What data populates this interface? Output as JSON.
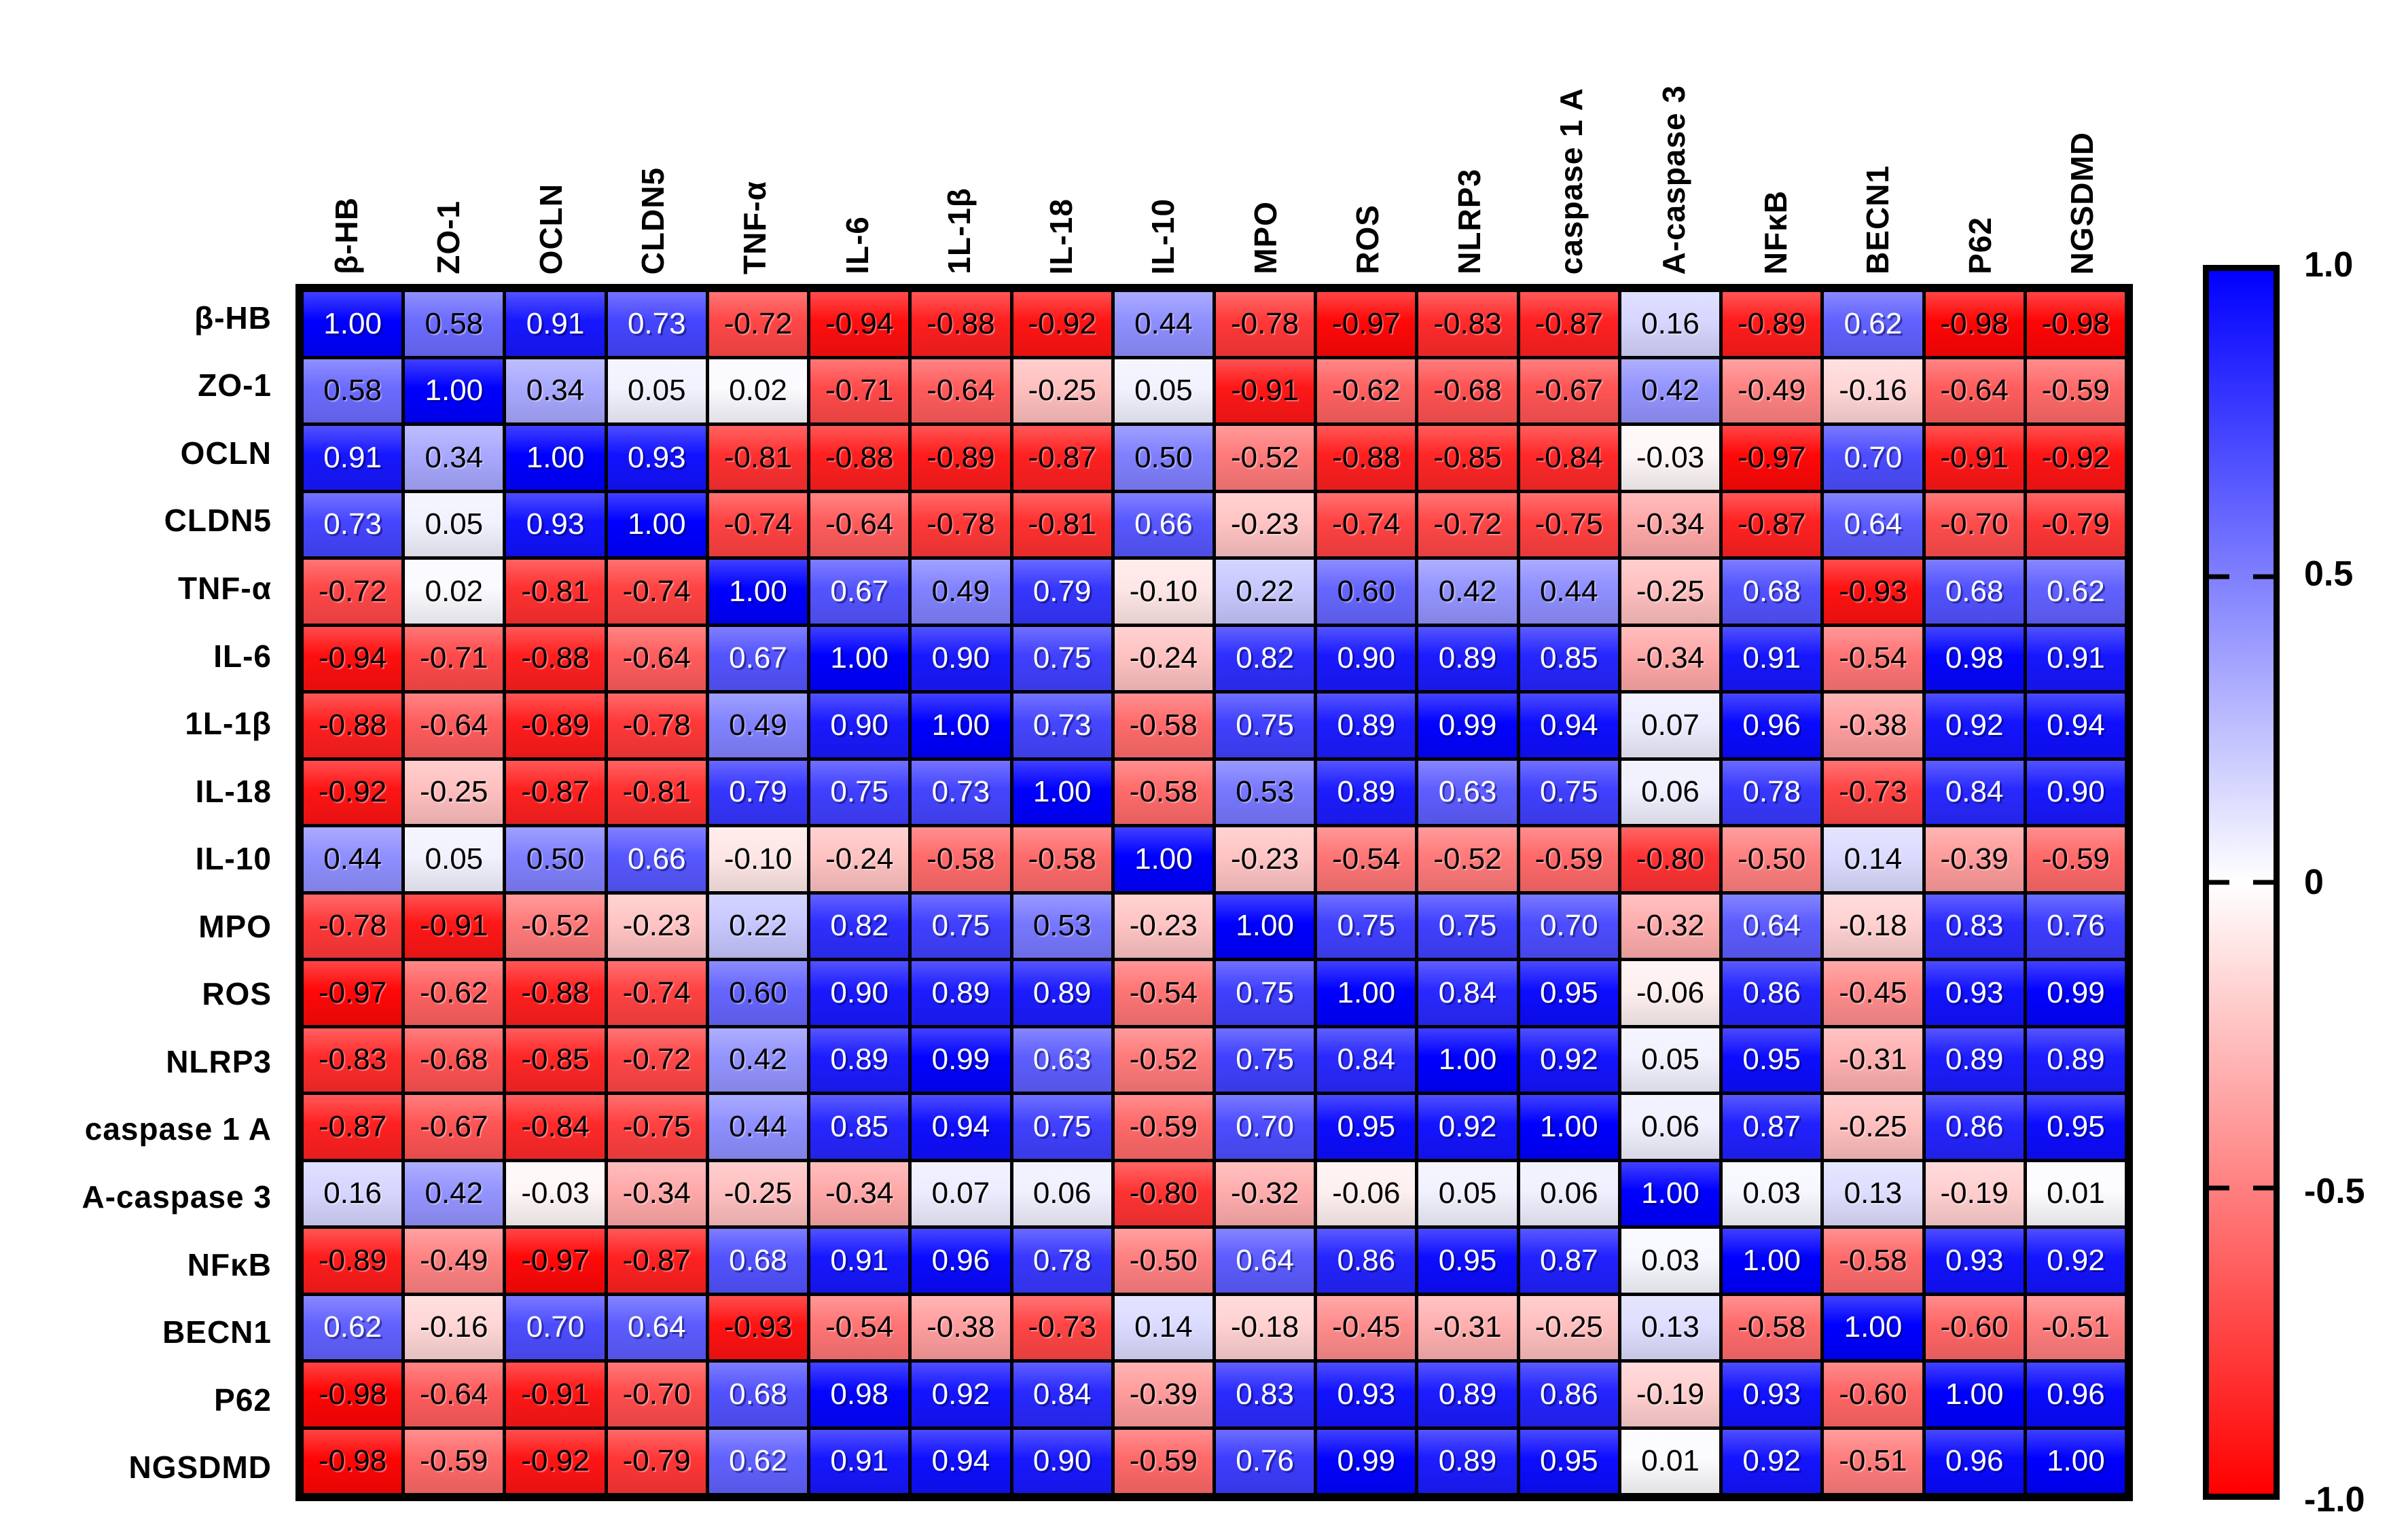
{
  "figure": {
    "description": "Correlation matrix heatmap with blue-white-red diverging colormap",
    "background_color": "#FFFFFF"
  },
  "chart_data": {
    "type": "heatmap",
    "row_labels": [
      "β-HB",
      "ZO-1",
      "OCLN",
      "CLDN5",
      "TNF-α",
      "IL-6",
      "1L-1β",
      "IL-18",
      "IL-10",
      "MPO",
      "ROS",
      "NLRP3",
      "caspase 1 A",
      "A-caspase 3",
      "NFκB",
      "BECN1",
      "P62",
      "NGSDMD"
    ],
    "col_labels": [
      "β-HB",
      "ZO-1",
      "OCLN",
      "CLDN5",
      "TNF-α",
      "IL-6",
      "1L-1β",
      "IL-18",
      "IL-10",
      "MPO",
      "ROS",
      "NLRP3",
      "caspase 1 A",
      "A-caspase 3",
      "NFκB",
      "BECN1",
      "P62",
      "NGSDMD"
    ],
    "values": [
      [
        1.0,
        0.58,
        0.91,
        0.73,
        -0.72,
        -0.94,
        -0.88,
        -0.92,
        0.44,
        -0.78,
        -0.97,
        -0.83,
        -0.87,
        0.16,
        -0.89,
        0.62,
        -0.98,
        -0.98
      ],
      [
        0.58,
        1.0,
        0.34,
        0.05,
        0.02,
        -0.71,
        -0.64,
        -0.25,
        0.05,
        -0.91,
        -0.62,
        -0.68,
        -0.67,
        0.42,
        -0.49,
        -0.16,
        -0.64,
        -0.59
      ],
      [
        0.91,
        0.34,
        1.0,
        0.93,
        -0.81,
        -0.88,
        -0.89,
        -0.87,
        0.5,
        -0.52,
        -0.88,
        -0.85,
        -0.84,
        -0.03,
        -0.97,
        0.7,
        -0.91,
        -0.92
      ],
      [
        0.73,
        0.05,
        0.93,
        1.0,
        -0.74,
        -0.64,
        -0.78,
        -0.81,
        0.66,
        -0.23,
        -0.74,
        -0.72,
        -0.75,
        -0.34,
        -0.87,
        0.64,
        -0.7,
        -0.79
      ],
      [
        -0.72,
        0.02,
        -0.81,
        -0.74,
        1.0,
        0.67,
        0.49,
        0.79,
        -0.1,
        0.22,
        0.6,
        0.42,
        0.44,
        -0.25,
        0.68,
        -0.93,
        0.68,
        0.62
      ],
      [
        -0.94,
        -0.71,
        -0.88,
        -0.64,
        0.67,
        1.0,
        0.9,
        0.75,
        -0.24,
        0.82,
        0.9,
        0.89,
        0.85,
        -0.34,
        0.91,
        -0.54,
        0.98,
        0.91
      ],
      [
        -0.88,
        -0.64,
        -0.89,
        -0.78,
        0.49,
        0.9,
        1.0,
        0.73,
        -0.58,
        0.75,
        0.89,
        0.99,
        0.94,
        0.07,
        0.96,
        -0.38,
        0.92,
        0.94
      ],
      [
        -0.92,
        -0.25,
        -0.87,
        -0.81,
        0.79,
        0.75,
        0.73,
        1.0,
        -0.58,
        0.53,
        0.89,
        0.63,
        0.75,
        0.06,
        0.78,
        -0.73,
        0.84,
        0.9
      ],
      [
        0.44,
        0.05,
        0.5,
        0.66,
        -0.1,
        -0.24,
        -0.58,
        -0.58,
        1.0,
        -0.23,
        -0.54,
        -0.52,
        -0.59,
        -0.8,
        -0.5,
        0.14,
        -0.39,
        -0.59
      ],
      [
        -0.78,
        -0.91,
        -0.52,
        -0.23,
        0.22,
        0.82,
        0.75,
        0.53,
        -0.23,
        1.0,
        0.75,
        0.75,
        0.7,
        -0.32,
        0.64,
        -0.18,
        0.83,
        0.76
      ],
      [
        -0.97,
        -0.62,
        -0.88,
        -0.74,
        0.6,
        0.9,
        0.89,
        0.89,
        -0.54,
        0.75,
        1.0,
        0.84,
        0.95,
        -0.06,
        0.86,
        -0.45,
        0.93,
        0.99
      ],
      [
        -0.83,
        -0.68,
        -0.85,
        -0.72,
        0.42,
        0.89,
        0.99,
        0.63,
        -0.52,
        0.75,
        0.84,
        1.0,
        0.92,
        0.05,
        0.95,
        -0.31,
        0.89,
        0.89
      ],
      [
        -0.87,
        -0.67,
        -0.84,
        -0.75,
        0.44,
        0.85,
        0.94,
        0.75,
        -0.59,
        0.7,
        0.95,
        0.92,
        1.0,
        0.06,
        0.87,
        -0.25,
        0.86,
        0.95
      ],
      [
        0.16,
        0.42,
        -0.03,
        -0.34,
        -0.25,
        -0.34,
        0.07,
        0.06,
        -0.8,
        -0.32,
        -0.06,
        0.05,
        0.06,
        1.0,
        0.03,
        0.13,
        -0.19,
        0.01
      ],
      [
        -0.89,
        -0.49,
        -0.97,
        -0.87,
        0.68,
        0.91,
        0.96,
        0.78,
        -0.5,
        0.64,
        0.86,
        0.95,
        0.87,
        0.03,
        1.0,
        -0.58,
        0.93,
        0.92
      ],
      [
        0.62,
        -0.16,
        0.7,
        0.64,
        -0.93,
        -0.54,
        -0.38,
        -0.73,
        0.14,
        -0.18,
        -0.45,
        -0.31,
        -0.25,
        0.13,
        -0.58,
        1.0,
        -0.6,
        -0.51
      ],
      [
        -0.98,
        -0.64,
        -0.91,
        -0.7,
        0.68,
        0.98,
        0.92,
        0.84,
        -0.39,
        0.83,
        0.93,
        0.89,
        0.86,
        -0.19,
        0.93,
        -0.6,
        1.0,
        0.96
      ],
      [
        -0.98,
        -0.59,
        -0.92,
        -0.79,
        0.62,
        0.91,
        0.94,
        0.9,
        -0.59,
        0.76,
        0.99,
        0.89,
        0.95,
        0.01,
        0.92,
        -0.51,
        0.96,
        1.0
      ]
    ],
    "value_format": "0.00",
    "value_range": [
      -1,
      1
    ],
    "colorbar": {
      "position": "right",
      "tick_labels": [
        "1.0",
        "0.5",
        "0",
        "-0.5",
        "-1.0"
      ],
      "tick_values": [
        1.0,
        0.5,
        0,
        -0.5,
        -1.0
      ],
      "max_color": "#0000FF",
      "mid_color": "#FFFFFF",
      "min_color": "#FF0000"
    },
    "style": {
      "grid_line_color": "#000000",
      "white_text_threshold": 0.62
    }
  }
}
